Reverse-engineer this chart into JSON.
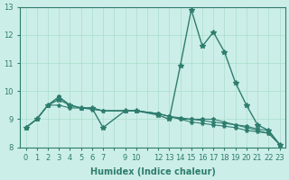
{
  "bg_color": "#cceee8",
  "grid_color": "#aaddcc",
  "line_color": "#2e7d6e",
  "xlabel": "Humidex (Indice chaleur)",
  "xlim": [
    -0.5,
    23.5
  ],
  "ylim": [
    8,
    13
  ],
  "yticks": [
    8,
    9,
    10,
    11,
    12,
    13
  ],
  "x_vals": [
    0,
    1,
    2,
    3,
    4,
    5,
    6,
    7,
    9,
    10,
    12,
    13,
    14,
    15,
    16,
    17,
    18,
    19,
    20,
    21,
    22,
    23
  ],
  "series": [
    [
      8.7,
      9.0,
      9.5,
      9.7,
      9.5,
      9.4,
      9.4,
      8.7,
      9.3,
      9.3,
      9.15,
      9.0,
      10.9,
      12.9,
      11.6,
      12.1,
      11.4,
      10.3,
      9.5,
      8.8,
      8.6,
      8.1
    ],
    [
      8.7,
      9.0,
      9.5,
      9.8,
      9.5,
      9.4,
      9.4,
      9.3,
      9.3,
      9.3,
      9.2,
      9.1,
      9.0,
      9.0,
      9.0,
      9.0,
      8.9,
      8.8,
      8.7,
      8.6,
      8.5,
      8.1
    ],
    [
      8.7,
      9.0,
      9.5,
      9.8,
      9.5,
      9.4,
      9.4,
      9.3,
      9.3,
      9.3,
      9.2,
      9.1,
      9.05,
      9.0,
      8.95,
      8.9,
      8.85,
      8.8,
      8.75,
      8.65,
      8.6,
      8.1
    ],
    [
      8.7,
      9.0,
      9.5,
      9.5,
      9.4,
      9.4,
      9.35,
      9.3,
      9.3,
      9.3,
      9.2,
      9.1,
      9.0,
      8.9,
      8.85,
      8.8,
      8.75,
      8.7,
      8.6,
      8.55,
      8.5,
      8.1
    ]
  ]
}
